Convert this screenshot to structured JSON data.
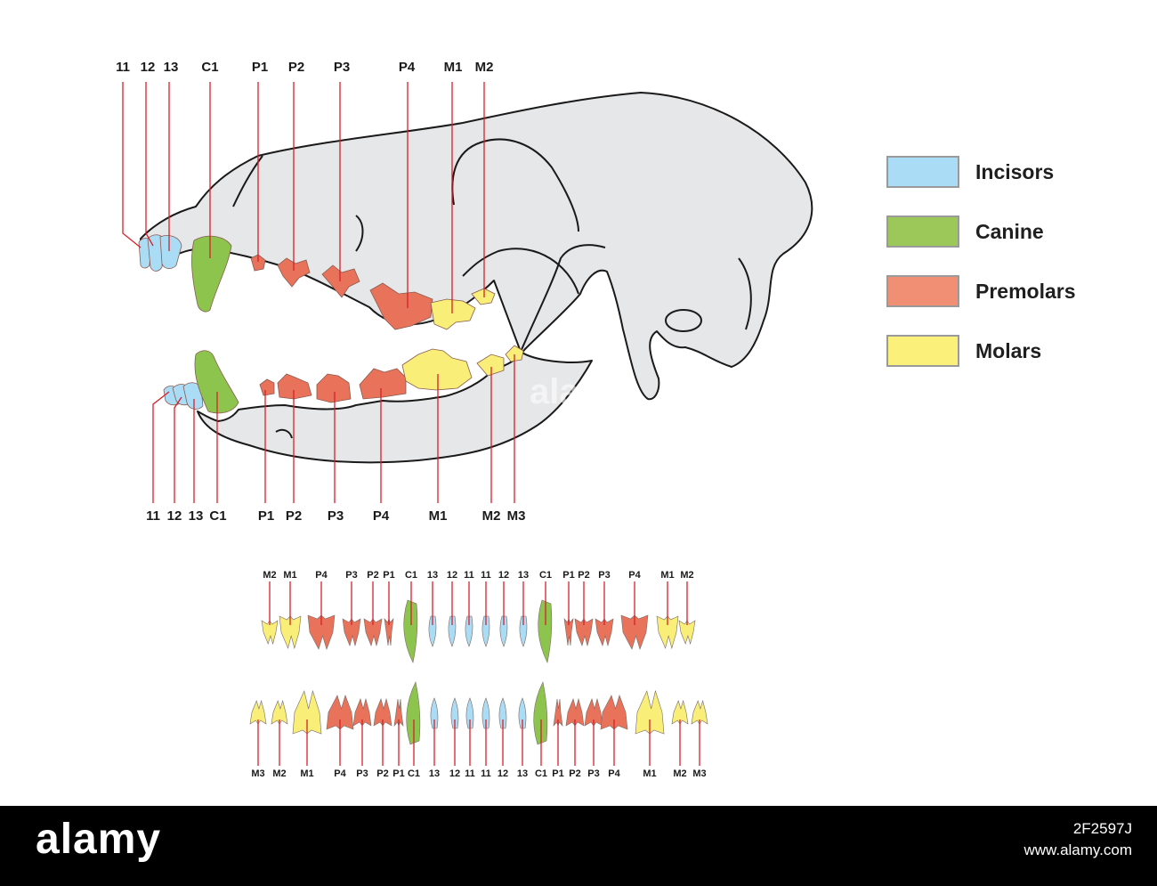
{
  "upper_jaw_labels": [
    "11",
    "12",
    "13",
    "C1",
    "P1",
    "P2",
    "P3",
    "P4",
    "M1",
    "M2"
  ],
  "lower_jaw_labels": [
    "11",
    "12",
    "13",
    "C1",
    "P1",
    "P2",
    "P3",
    "P4",
    "M1",
    "M2",
    "M3"
  ],
  "top_row_labels": [
    "M2",
    "M1",
    "P4",
    "P3",
    "P2",
    "P1",
    "C1",
    "13",
    "12",
    "11",
    "11",
    "12",
    "13",
    "C1",
    "P1",
    "P2",
    "P3",
    "P4",
    "M1",
    "M2"
  ],
  "bottom_row_labels": [
    "M3",
    "M2",
    "M1",
    "P4",
    "P3",
    "P2",
    "P1",
    "C1",
    "13",
    "12",
    "11",
    "11",
    "12",
    "13",
    "C1",
    "P1",
    "P2",
    "P3",
    "P4",
    "M1",
    "M2",
    "M3"
  ],
  "legend": [
    {
      "label": "Incisors",
      "color": "#aadcf5"
    },
    {
      "label": "Canine",
      "color": "#9cc85a"
    },
    {
      "label": "Premolars",
      "color": "#f08f74"
    },
    {
      "label": "Molars",
      "color": "#fbf07a"
    }
  ],
  "colors": {
    "incisor": "#aadcf5",
    "canine": "#8dc44e",
    "premolar": "#e8735a",
    "molar": "#f8ee78",
    "skull": "#e6e7e8",
    "leader": "#d8202a"
  },
  "watermark": "alamy",
  "footer": {
    "brand": "alamy",
    "image_id": "2F2597J",
    "url": "www.alamy.com"
  }
}
